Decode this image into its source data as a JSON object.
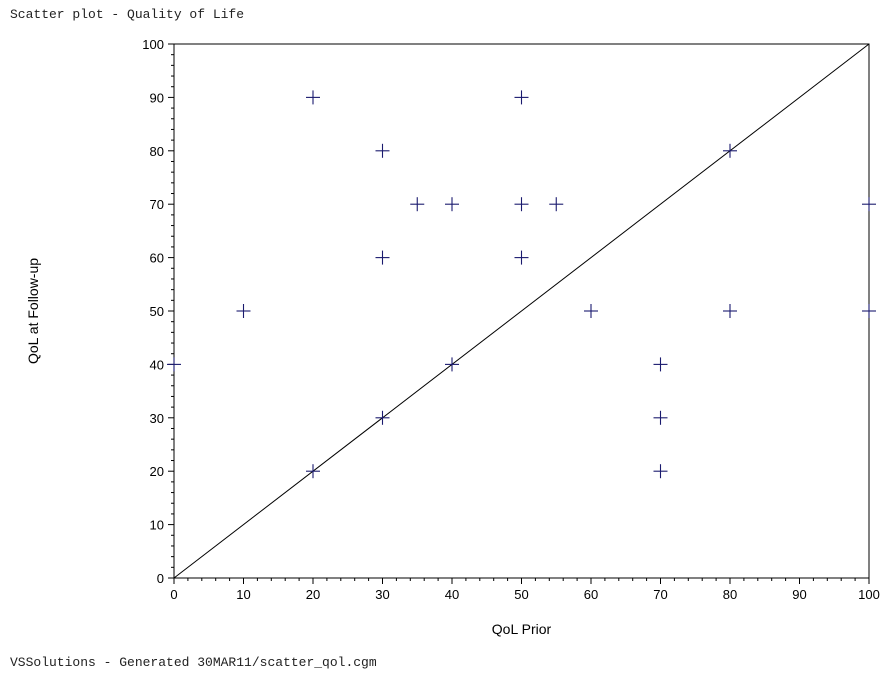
{
  "header": {
    "title": "Scatter plot - Quality of Life"
  },
  "footer": {
    "text": "VSSolutions - Generated 30MAR11/scatter_qol.cgm"
  },
  "chart_data": {
    "type": "scatter",
    "xlabel": "QoL Prior",
    "ylabel": "QoL at Follow-up",
    "xlim": [
      0,
      100
    ],
    "ylim": [
      0,
      100
    ],
    "xticks": [
      0,
      10,
      20,
      30,
      40,
      50,
      60,
      70,
      80,
      90,
      100
    ],
    "yticks": [
      0,
      10,
      20,
      30,
      40,
      50,
      60,
      70,
      80,
      90,
      100
    ],
    "grid": false,
    "marker": "plus",
    "marker_color": "#1a1a6e",
    "reference_line": {
      "from": [
        0,
        0
      ],
      "to": [
        100,
        100
      ]
    },
    "points": [
      {
        "x": 0,
        "y": 40
      },
      {
        "x": 10,
        "y": 50
      },
      {
        "x": 20,
        "y": 90
      },
      {
        "x": 20,
        "y": 20
      },
      {
        "x": 30,
        "y": 80
      },
      {
        "x": 30,
        "y": 60
      },
      {
        "x": 30,
        "y": 30
      },
      {
        "x": 35,
        "y": 70
      },
      {
        "x": 40,
        "y": 70
      },
      {
        "x": 40,
        "y": 40
      },
      {
        "x": 50,
        "y": 90
      },
      {
        "x": 50,
        "y": 70
      },
      {
        "x": 50,
        "y": 60
      },
      {
        "x": 55,
        "y": 70
      },
      {
        "x": 60,
        "y": 50
      },
      {
        "x": 70,
        "y": 40
      },
      {
        "x": 70,
        "y": 30
      },
      {
        "x": 70,
        "y": 20
      },
      {
        "x": 80,
        "y": 80
      },
      {
        "x": 80,
        "y": 50
      },
      {
        "x": 100,
        "y": 70
      },
      {
        "x": 100,
        "y": 50
      }
    ]
  }
}
